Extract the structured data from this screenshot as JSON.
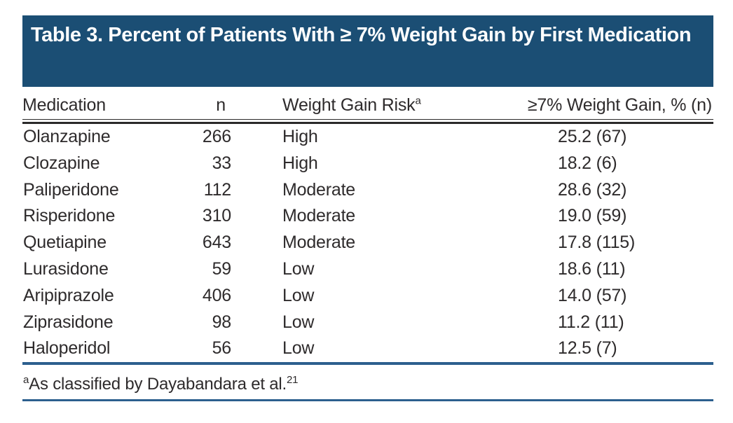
{
  "colors": {
    "header_bg": "#1b4e74",
    "title_text": "#ffffff",
    "rule_blue": "#2c5f8e",
    "rule_dark": "#2b2a2a",
    "text": "#2e2b2c"
  },
  "table": {
    "title": "Table 3. Percent of Patients With ≥ 7% Weight Gain by First Medication",
    "columns": {
      "medication": "Medication",
      "n": "n",
      "risk": "Weight Gain Risk",
      "risk_superscript": "a",
      "weight_gain": "≥7% Weight Gain, % (n)"
    },
    "rows": [
      {
        "medication": "Olanzapine",
        "n": "266",
        "risk": "High",
        "weight_gain": "25.2 (67)"
      },
      {
        "medication": "Clozapine",
        "n": "33",
        "risk": "High",
        "weight_gain": "18.2 (6)"
      },
      {
        "medication": "Paliperidone",
        "n": "112",
        "risk": "Moderate",
        "weight_gain": "28.6 (32)"
      },
      {
        "medication": "Risperidone",
        "n": "310",
        "risk": "Moderate",
        "weight_gain": "19.0 (59)"
      },
      {
        "medication": "Quetiapine",
        "n": "643",
        "risk": "Moderate",
        "weight_gain": "17.8 (115)"
      },
      {
        "medication": "Lurasidone",
        "n": "59",
        "risk": "Low",
        "weight_gain": "18.6 (11)"
      },
      {
        "medication": "Aripiprazole",
        "n": "406",
        "risk": "Low",
        "weight_gain": "14.0 (57)"
      },
      {
        "medication": "Ziprasidone",
        "n": "98",
        "risk": "Low",
        "weight_gain": "11.2 (11)"
      },
      {
        "medication": "Haloperidol",
        "n": "56",
        "risk": "Low",
        "weight_gain": "12.5 (7)"
      }
    ],
    "footnote": {
      "marker": "a",
      "text": "As classified by Dayabandara et al.",
      "reference": "21"
    }
  }
}
